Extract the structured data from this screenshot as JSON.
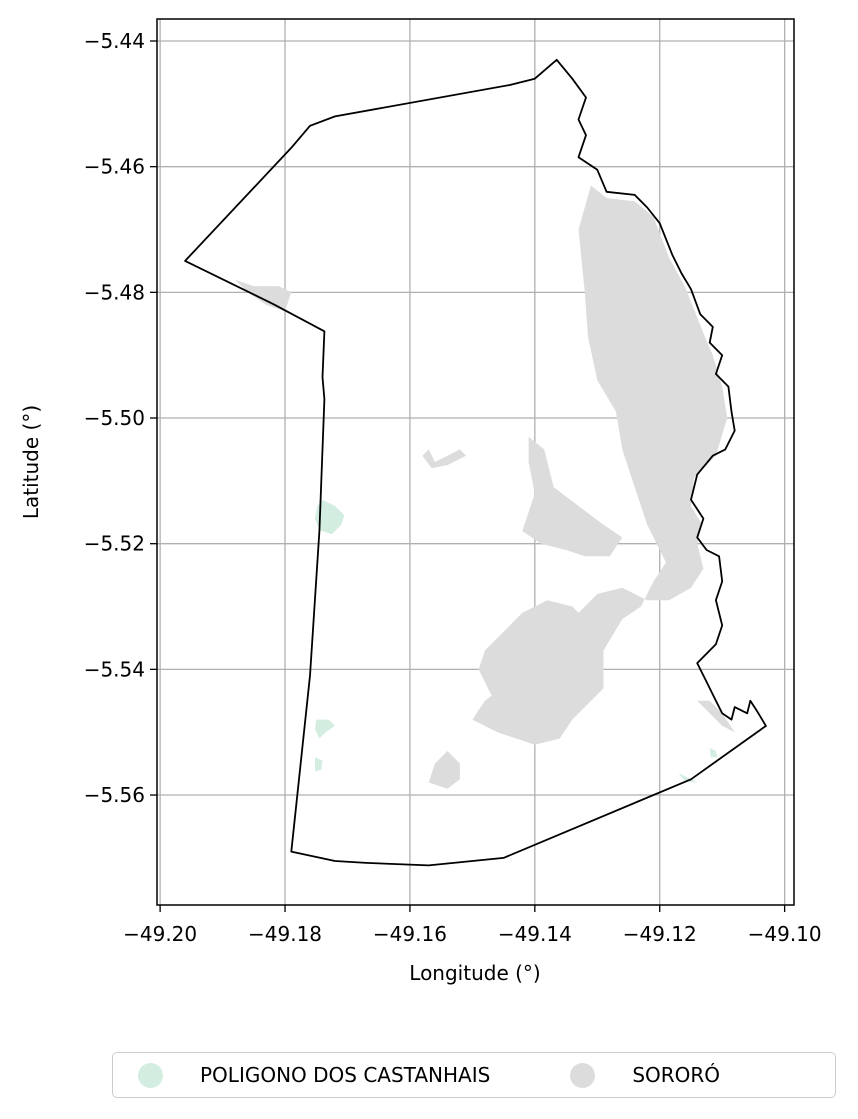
{
  "chart_data": {
    "type": "map",
    "title": "",
    "xlabel": "Longitude (°)",
    "ylabel": "Latitude (°)",
    "xlim": [
      -49.2005,
      -49.0985
    ],
    "ylim": [
      -5.5775,
      -5.4365
    ],
    "x_ticks": [
      -49.2,
      -49.18,
      -49.16,
      -49.14,
      -49.12,
      -49.1
    ],
    "y_ticks": [
      -5.44,
      -5.46,
      -5.48,
      -5.5,
      -5.52,
      -5.54,
      -5.56
    ],
    "x_tick_labels": [
      "−49.20",
      "−49.18",
      "−49.16",
      "−49.14",
      "−49.12",
      "−49.10"
    ],
    "y_tick_labels": [
      "−5.44",
      "−5.46",
      "−5.48",
      "−5.50",
      "−5.52",
      "−5.54",
      "−5.56"
    ],
    "grid": true,
    "legend_position": "bottom-center",
    "legend": [
      {
        "label": "POLIGONO DOS CASTANHAIS",
        "color": "#d3ede1"
      },
      {
        "label": "SORORÓ",
        "color": "#dcdcdc"
      }
    ],
    "boundary": [
      [
        -49.196,
        -5.475
      ],
      [
        -49.179,
        -5.457
      ],
      [
        -49.176,
        -5.4535
      ],
      [
        -49.172,
        -5.452
      ],
      [
        -49.144,
        -5.447
      ],
      [
        -49.14,
        -5.446
      ],
      [
        -49.1365,
        -5.443
      ],
      [
        -49.134,
        -5.446
      ],
      [
        -49.1318,
        -5.449
      ],
      [
        -49.133,
        -5.4525
      ],
      [
        -49.1318,
        -5.455
      ],
      [
        -49.133,
        -5.4585
      ],
      [
        -49.13,
        -5.4605
      ],
      [
        -49.1285,
        -5.464
      ],
      [
        -49.124,
        -5.4645
      ],
      [
        -49.122,
        -5.4665
      ],
      [
        -49.12,
        -5.469
      ],
      [
        -49.118,
        -5.474
      ],
      [
        -49.1165,
        -5.477
      ],
      [
        -49.115,
        -5.4795
      ],
      [
        -49.1135,
        -5.4835
      ],
      [
        -49.1115,
        -5.4855
      ],
      [
        -49.112,
        -5.488
      ],
      [
        -49.11,
        -5.49
      ],
      [
        -49.111,
        -5.493
      ],
      [
        -49.109,
        -5.495
      ],
      [
        -49.1085,
        -5.499
      ],
      [
        -49.108,
        -5.502
      ],
      [
        -49.1095,
        -5.505
      ],
      [
        -49.1115,
        -5.506
      ],
      [
        -49.114,
        -5.509
      ],
      [
        -49.115,
        -5.513
      ],
      [
        -49.113,
        -5.516
      ],
      [
        -49.114,
        -5.519
      ],
      [
        -49.1125,
        -5.521
      ],
      [
        -49.1105,
        -5.522
      ],
      [
        -49.11,
        -5.526
      ],
      [
        -49.111,
        -5.529
      ],
      [
        -49.11,
        -5.533
      ],
      [
        -49.111,
        -5.536
      ],
      [
        -49.114,
        -5.539
      ],
      [
        -49.1125,
        -5.542
      ],
      [
        -49.1115,
        -5.544
      ],
      [
        -49.11,
        -5.547
      ],
      [
        -49.1085,
        -5.548
      ],
      [
        -49.108,
        -5.546
      ],
      [
        -49.106,
        -5.547
      ],
      [
        -49.1055,
        -5.545
      ],
      [
        -49.1045,
        -5.5465
      ],
      [
        -49.103,
        -5.549
      ],
      [
        -49.115,
        -5.5575
      ],
      [
        -49.145,
        -5.57
      ],
      [
        -49.157,
        -5.5712
      ],
      [
        -49.167,
        -5.5708
      ],
      [
        -49.172,
        -5.5705
      ],
      [
        -49.179,
        -5.569
      ],
      [
        -49.176,
        -5.541
      ],
      [
        -49.1745,
        -5.518
      ],
      [
        -49.1737,
        -5.497
      ],
      [
        -49.174,
        -5.4935
      ],
      [
        -49.1737,
        -5.4862
      ],
      [
        -49.182,
        -5.4818
      ],
      [
        -49.196,
        -5.475
      ]
    ],
    "regions": [
      {
        "name": "SORORÓ",
        "color": "#dcdcdc",
        "polygons": [
          [
            [
              -49.131,
              -5.463
            ],
            [
              -49.1285,
              -5.465
            ],
            [
              -49.124,
              -5.4655
            ],
            [
              -49.121,
              -5.468
            ],
            [
              -49.1185,
              -5.4745
            ],
            [
              -49.116,
              -5.479
            ],
            [
              -49.114,
              -5.484
            ],
            [
              -49.1128,
              -5.487
            ],
            [
              -49.1115,
              -5.49
            ],
            [
              -49.11,
              -5.495
            ],
            [
              -49.1092,
              -5.5
            ],
            [
              -49.111,
              -5.506
            ],
            [
              -49.1145,
              -5.5095
            ],
            [
              -49.115,
              -5.514
            ],
            [
              -49.1132,
              -5.517
            ],
            [
              -49.114,
              -5.52
            ],
            [
              -49.113,
              -5.524
            ],
            [
              -49.115,
              -5.527
            ],
            [
              -49.1185,
              -5.529
            ],
            [
              -49.122,
              -5.529
            ],
            [
              -49.126,
              -5.527
            ],
            [
              -49.13,
              -5.528
            ],
            [
              -49.134,
              -5.532
            ],
            [
              -49.138,
              -5.534
            ],
            [
              -49.142,
              -5.537
            ],
            [
              -49.144,
              -5.542
            ],
            [
              -49.148,
              -5.545
            ],
            [
              -49.15,
              -5.548
            ],
            [
              -49.146,
              -5.55
            ],
            [
              -49.14,
              -5.552
            ],
            [
              -49.136,
              -5.551
            ],
            [
              -49.134,
              -5.548
            ],
            [
              -49.129,
              -5.543
            ],
            [
              -49.129,
              -5.537
            ],
            [
              -49.126,
              -5.532
            ],
            [
              -49.123,
              -5.53
            ],
            [
              -49.121,
              -5.526
            ],
            [
              -49.119,
              -5.523
            ],
            [
              -49.122,
              -5.517
            ],
            [
              -49.124,
              -5.511
            ],
            [
              -49.126,
              -5.505
            ],
            [
              -49.127,
              -5.499
            ],
            [
              -49.13,
              -5.494
            ],
            [
              -49.1315,
              -5.487
            ],
            [
              -49.132,
              -5.48
            ],
            [
              -49.133,
              -5.47
            ],
            [
              -49.131,
              -5.463
            ]
          ],
          [
            [
              -49.141,
              -5.503
            ],
            [
              -49.1385,
              -5.505
            ],
            [
              -49.137,
              -5.511
            ],
            [
              -49.133,
              -5.514
            ],
            [
              -49.129,
              -5.517
            ],
            [
              -49.126,
              -5.519
            ],
            [
              -49.128,
              -5.522
            ],
            [
              -49.132,
              -5.522
            ],
            [
              -49.135,
              -5.521
            ],
            [
              -49.139,
              -5.52
            ],
            [
              -49.142,
              -5.518
            ],
            [
              -49.14,
              -5.512
            ],
            [
              -49.141,
              -5.507
            ],
            [
              -49.141,
              -5.503
            ]
          ],
          [
            [
              -49.157,
              -5.505
            ],
            [
              -49.156,
              -5.507
            ],
            [
              -49.154,
              -5.506
            ],
            [
              -49.152,
              -5.505
            ],
            [
              -49.151,
              -5.506
            ],
            [
              -49.154,
              -5.5075
            ],
            [
              -49.1565,
              -5.508
            ],
            [
              -49.158,
              -5.506
            ],
            [
              -49.157,
              -5.505
            ]
          ],
          [
            [
              -49.131,
              -5.533
            ],
            [
              -49.134,
              -5.53
            ],
            [
              -49.138,
              -5.529
            ],
            [
              -49.142,
              -5.531
            ],
            [
              -49.145,
              -5.534
            ],
            [
              -49.148,
              -5.537
            ],
            [
              -49.149,
              -5.54
            ],
            [
              -49.147,
              -5.544
            ],
            [
              -49.144,
              -5.547
            ],
            [
              -49.139,
              -5.548
            ],
            [
              -49.135,
              -5.5475
            ],
            [
              -49.132,
              -5.545
            ],
            [
              -49.1305,
              -5.541
            ],
            [
              -49.131,
              -5.533
            ]
          ],
          [
            [
              -49.154,
              -5.553
            ],
            [
              -49.156,
              -5.555
            ],
            [
              -49.157,
              -5.558
            ],
            [
              -49.154,
              -5.559
            ],
            [
              -49.152,
              -5.5575
            ],
            [
              -49.152,
              -5.555
            ],
            [
              -49.154,
              -5.553
            ]
          ],
          [
            [
              -49.188,
              -5.478
            ],
            [
              -49.186,
              -5.48
            ],
            [
              -49.183,
              -5.482
            ],
            [
              -49.18,
              -5.483
            ],
            [
              -49.179,
              -5.48
            ],
            [
              -49.181,
              -5.479
            ],
            [
              -49.185,
              -5.479
            ],
            [
              -49.188,
              -5.478
            ]
          ],
          [
            [
              -49.114,
              -5.545
            ],
            [
              -49.112,
              -5.547
            ],
            [
              -49.11,
              -5.549
            ],
            [
              -49.108,
              -5.55
            ],
            [
              -49.11,
              -5.547
            ],
            [
              -49.112,
              -5.545
            ],
            [
              -49.114,
              -5.545
            ]
          ]
        ]
      },
      {
        "name": "POLIGONO DOS CASTANHAIS",
        "color": "#d3ede1",
        "polygons": [
          [
            [
              -49.174,
              -5.513
            ],
            [
              -49.172,
              -5.514
            ],
            [
              -49.1705,
              -5.5155
            ],
            [
              -49.171,
              -5.517
            ],
            [
              -49.1725,
              -5.5185
            ],
            [
              -49.1745,
              -5.5178
            ],
            [
              -49.1752,
              -5.516
            ],
            [
              -49.1748,
              -5.514
            ],
            [
              -49.174,
              -5.513
            ]
          ],
          [
            [
              -49.175,
              -5.548
            ],
            [
              -49.173,
              -5.548
            ],
            [
              -49.172,
              -5.549
            ],
            [
              -49.1735,
              -5.55
            ],
            [
              -49.1745,
              -5.551
            ],
            [
              -49.1752,
              -5.5495
            ],
            [
              -49.175,
              -5.548
            ]
          ],
          [
            [
              -49.1752,
              -5.554
            ],
            [
              -49.174,
              -5.5545
            ],
            [
              -49.1742,
              -5.556
            ],
            [
              -49.1752,
              -5.5562
            ],
            [
              -49.1752,
              -5.554
            ]
          ],
          [
            [
              -49.112,
              -5.5525
            ],
            [
              -49.111,
              -5.553
            ],
            [
              -49.1108,
              -5.554
            ],
            [
              -49.1118,
              -5.554
            ],
            [
              -49.112,
              -5.5525
            ]
          ],
          [
            [
              -49.117,
              -5.5565
            ],
            [
              -49.115,
              -5.5575
            ],
            [
              -49.114,
              -5.558
            ],
            [
              -49.116,
              -5.5578
            ],
            [
              -49.117,
              -5.5565
            ]
          ]
        ]
      }
    ]
  }
}
